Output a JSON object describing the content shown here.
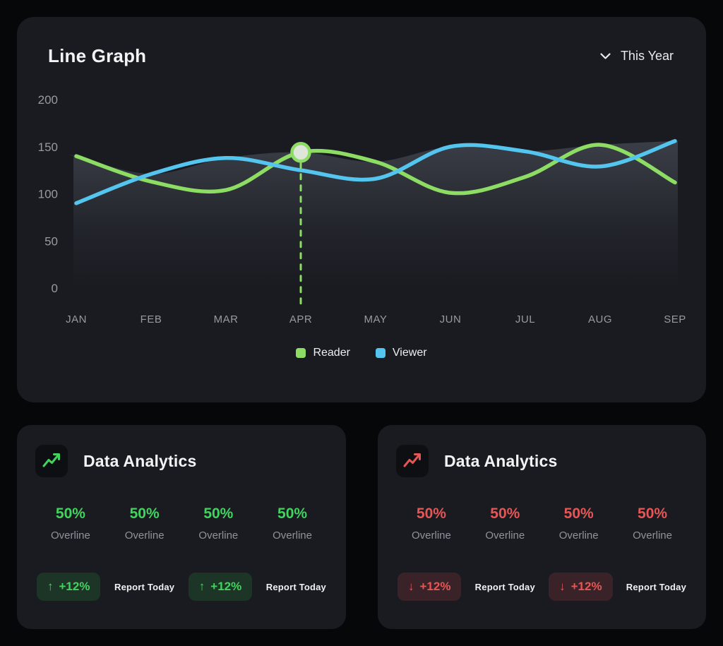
{
  "colors": {
    "page_bg": "#060709",
    "card_bg": "#191b21",
    "reader_green": "#8ddc63",
    "viewer_blue": "#54c5ee",
    "axis_text": "#979ba1",
    "positive_green": "#42d35f",
    "negative_red": "#e65655",
    "green_badge_bg": "#1d3526",
    "red_badge_bg": "#392329"
  },
  "line_chart_card": {
    "title": "Line Graph",
    "filter": {
      "label": "This Year"
    }
  },
  "chart_data": {
    "type": "line",
    "title": "Line Graph",
    "x": [
      "JAN",
      "FEB",
      "MAR",
      "APR",
      "MAY",
      "JUN",
      "JUL",
      "AUG",
      "SEP"
    ],
    "series": [
      {
        "name": "Reader",
        "color": "#8ddc63",
        "values": [
          140,
          113,
          104,
          144,
          134,
          101,
          118,
          152,
          112
        ]
      },
      {
        "name": "Viewer",
        "color": "#54c5ee",
        "values": [
          90,
          121,
          138,
          125,
          116,
          150,
          145,
          129,
          156
        ]
      }
    ],
    "y_ticks": [
      0,
      50,
      100,
      150,
      200
    ],
    "ylim": [
      0,
      200
    ],
    "grid": false,
    "legend_position": "bottom",
    "highlight": {
      "series": "Reader",
      "x": "APR",
      "value": 144
    }
  },
  "analytics_cards": [
    {
      "title": "Data Analytics",
      "accent_color": "#42d35f",
      "badge_bg": "#1d3526",
      "icon": "trend-up-icon",
      "stats": [
        {
          "value": "50%",
          "label": "Overline"
        },
        {
          "value": "50%",
          "label": "Overline"
        },
        {
          "value": "50%",
          "label": "Overline"
        },
        {
          "value": "50%",
          "label": "Overline"
        }
      ],
      "badges": [
        {
          "arrow": "↑",
          "text": "+12%",
          "caption": "Report Today"
        },
        {
          "arrow": "↑",
          "text": "+12%",
          "caption": "Report Today"
        }
      ]
    },
    {
      "title": "Data Analytics",
      "accent_color": "#e65655",
      "badge_bg": "#392329",
      "icon": "trend-down-icon",
      "stats": [
        {
          "value": "50%",
          "label": "Overline"
        },
        {
          "value": "50%",
          "label": "Overline"
        },
        {
          "value": "50%",
          "label": "Overline"
        },
        {
          "value": "50%",
          "label": "Overline"
        }
      ],
      "badges": [
        {
          "arrow": "↓",
          "text": "+12%",
          "caption": "Report Today"
        },
        {
          "arrow": "↓",
          "text": "+12%",
          "caption": "Report Today"
        }
      ]
    }
  ]
}
